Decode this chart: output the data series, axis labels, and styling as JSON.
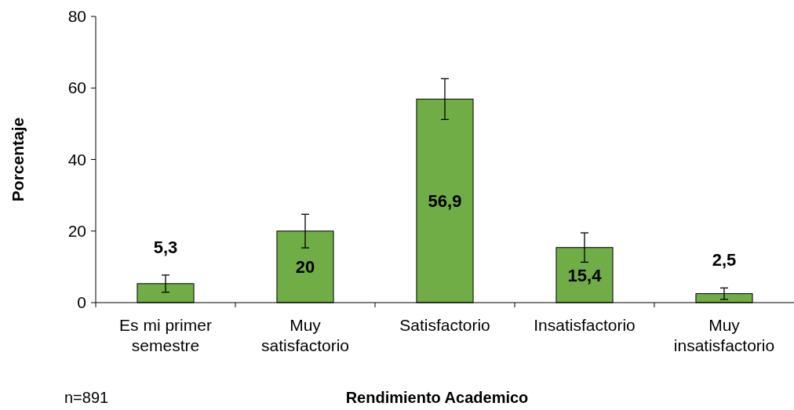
{
  "chart_data": {
    "type": "bar",
    "xlabel": "Rendimiento Academico",
    "ylabel": "Porcentaje",
    "categories": [
      "Es mi primer semestre",
      "Muy satisfactorio",
      "Satisfactorio",
      "Insatisfactorio",
      "Muy insatisfactorio"
    ],
    "values": [
      5.3,
      20,
      56.9,
      15.4,
      2.5
    ],
    "errors": [
      2.4,
      4.7,
      5.7,
      4.1,
      1.6
    ],
    "value_labels": [
      "5,3",
      "20",
      "56,9",
      "15,4",
      "2,5"
    ],
    "color": "#70ad47",
    "ylim": [
      0,
      80
    ],
    "yticks": [
      0,
      20,
      40,
      60,
      80
    ],
    "grid": false,
    "annotations": [
      "n=891"
    ]
  }
}
